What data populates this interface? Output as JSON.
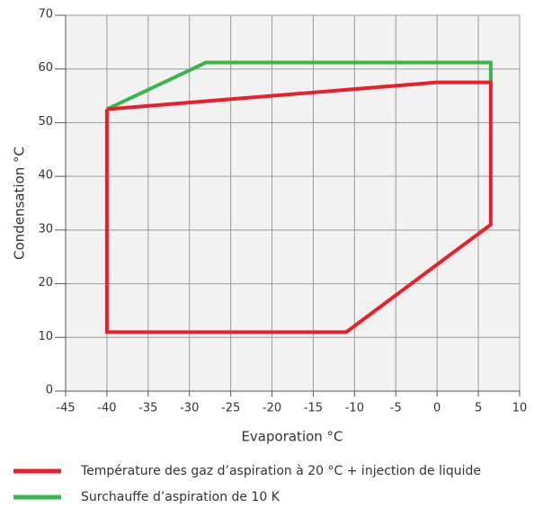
{
  "chart_data": {
    "type": "line",
    "xlabel": "Evaporation °C",
    "ylabel": "Condensation °C",
    "xlim": [
      -45,
      10
    ],
    "xticks": [
      -45,
      -40,
      -35,
      -30,
      -25,
      -20,
      -15,
      -10,
      -5,
      0,
      5,
      10
    ],
    "ylim": [
      0,
      70
    ],
    "yticks": [
      0,
      10,
      20,
      30,
      40,
      50,
      60,
      70
    ],
    "grid": true,
    "series": [
      {
        "name": "Température des gaz d’aspiration à 20 °C + injection de liquide",
        "color": "#e8202a",
        "x": [
          -40,
          0,
          6.5,
          6.5,
          -11,
          -40,
          -40
        ],
        "values": [
          52.5,
          57.5,
          57.5,
          31,
          11,
          11,
          52.5
        ]
      },
      {
        "name": "Surchauffe d’aspiration de 10 K",
        "color": "#3ab54a",
        "x": [
          -40,
          -28,
          6.5,
          6.5
        ],
        "values": [
          52.5,
          61.2,
          61.2,
          57.5
        ]
      }
    ]
  }
}
